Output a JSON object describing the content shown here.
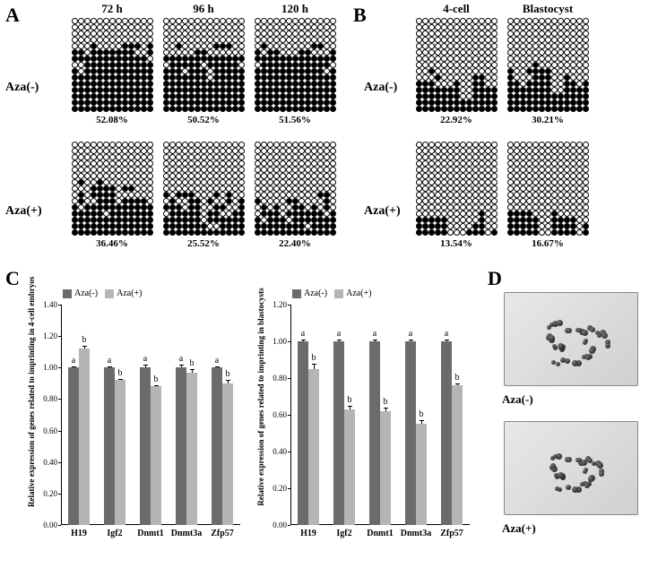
{
  "panelA": {
    "label": "A",
    "label_fontsize": 22,
    "columns": [
      "72 h",
      "96 h",
      "120 h"
    ],
    "rows": [
      "Aza(-)",
      "Aza(+)"
    ],
    "grids": {
      "Aza(-)_72h": {
        "percentage": "52.08%",
        "pattern": [
          "0000000000000",
          "0000000000000",
          "0000000000000",
          "0000000000000",
          "0001000011101",
          "1101111111001",
          "1111111111110",
          "0011111111111",
          "1011111111111",
          "1111111111111",
          "1111111111111",
          "1111111111111",
          "1111111111111",
          "1111111111111",
          "1111111111111"
        ]
      },
      "Aza(-)_96h": {
        "percentage": "50.52%",
        "pattern": [
          "0000000000000",
          "0000000000000",
          "0000000000000",
          "0000000000000",
          "0010000011100",
          "0000011000000",
          "1111111111111",
          "0111110111110",
          "1110111011111",
          "1111111011111",
          "1111111111111",
          "1111111111111",
          "1111111111111",
          "1111111111111",
          "1111111111111"
        ]
      },
      "Aza(-)_120h": {
        "percentage": "51.56%",
        "pattern": [
          "0000000000000",
          "0000000000000",
          "0000000000000",
          "0000000000000",
          "0100000001100",
          "1011000110001",
          "1111111111111",
          "0111111111110",
          "1111111111101",
          "1111111111111",
          "1111111111111",
          "1111111111111",
          "1111111111111",
          "1111111111111",
          "1111111111111"
        ]
      },
      "Aza(+)_72h": {
        "percentage": "36.46%",
        "pattern": [
          "0000000000000",
          "0000000000000",
          "0000000000000",
          "0000000000000",
          "0000000000000",
          "0000000000000",
          "0100100000000",
          "0001111011000",
          "0101111000000",
          "0100111011110",
          "1011111111111",
          "1111101111111",
          "1111111111111",
          "1111111111111",
          "1111111111111"
        ]
      },
      "Aza(+)_96h": {
        "percentage": "25.52%",
        "pattern": [
          "0000000000000",
          "0000000000000",
          "0000000000000",
          "0000000000000",
          "0000000000000",
          "0000000000000",
          "0000000000000",
          "0000000000000",
          "1011100010100",
          "0100110100101",
          "1110110011001",
          "0111110110011",
          "1111110111111",
          "1111111001111",
          "1111111111111"
        ]
      },
      "Aza(+)_120h": {
        "percentage": "22.40%",
        "pattern": [
          "0000000000000",
          "0000000000000",
          "0000000000000",
          "0000000000000",
          "0000000000000",
          "0000000000000",
          "0000000000000",
          "0000000000000",
          "0000000000110",
          "1000011000010",
          "0101001101010",
          "0111011111101",
          "1011101111111",
          "1111111101111",
          "1111111111111"
        ]
      }
    }
  },
  "panelB": {
    "label": "B",
    "columns": [
      "4-cell",
      "Blastocyst"
    ],
    "rows": [
      "Aza(-)",
      "Aza(+)"
    ],
    "grids": {
      "Aza(-)_4cell": {
        "percentage": "22.92%",
        "pattern": [
          "0000000000000",
          "0000000000000",
          "0000000000000",
          "0000000000000",
          "0000000000000",
          "0000000000000",
          "0000000000000",
          "0000000000000",
          "0010000000000",
          "0001000001100",
          "1110001001100",
          "1111111001111",
          "1111111001111",
          "1111111111111",
          "1111111111111"
        ]
      },
      "Aza(-)_Blastocyst": {
        "percentage": "30.21%",
        "pattern": [
          "0000000000000",
          "0000000000000",
          "0000000000000",
          "0000000000000",
          "0000000000000",
          "0000000000000",
          "0000000000000",
          "0000100000000",
          "1001111000000",
          "1000111001000",
          "1101111001101",
          "1111111001111",
          "1111111111111",
          "1111111111111",
          "1111111111111"
        ]
      },
      "Aza(+)_4cell": {
        "percentage": "13.54%",
        "pattern": [
          "0000000000000",
          "0000000000000",
          "0000000000000",
          "0000000000000",
          "0000000000000",
          "0000000000000",
          "0000000000000",
          "0000000000000",
          "0000000000000",
          "0000000000000",
          "0000000000000",
          "0000000000100",
          "1111100000100",
          "1111100001100",
          "1111100011101"
        ]
      },
      "Aza(+)_Blastocyst": {
        "percentage": "16.67%",
        "pattern": [
          "0000000000000",
          "0000000000000",
          "0000000000000",
          "0000000000000",
          "0000000000000",
          "0000000000000",
          "0000000000000",
          "0000000000000",
          "0000000000000",
          "0000000000000",
          "0000000000000",
          "1111000100000",
          "1111100111100",
          "1111100111101",
          "1111100111101"
        ]
      }
    }
  },
  "panelC": {
    "label": "C",
    "chart1": {
      "ylabel": "Relative expression of genes related to imprinting  in 4-cell embryos",
      "ylim": [
        0.0,
        1.4
      ],
      "ytick_step": 0.2,
      "bar_colors": {
        "Aza(-)": "#6b6b6b",
        "Aza(+)": "#b5b5b5"
      },
      "legend": [
        "Aza(-)",
        "Aza(+)"
      ],
      "genes": [
        "H19",
        "Igf2",
        "Dnmt1",
        "Dnmt3a",
        "Zfp57"
      ],
      "values": {
        "Aza(-)": [
          1.0,
          1.0,
          1.0,
          1.0,
          1.0
        ],
        "Aza(+)": [
          1.12,
          0.92,
          0.88,
          0.97,
          0.9
        ]
      },
      "errors": {
        "Aza(-)": [
          0.01,
          0.01,
          0.02,
          0.02,
          0.01
        ],
        "Aza(+)": [
          0.02,
          0.01,
          0.01,
          0.02,
          0.02
        ]
      },
      "significance": {
        "Aza(-)": [
          "a",
          "a",
          "a",
          "a",
          "a"
        ],
        "Aza(+)": [
          "b",
          "b",
          "b",
          "b",
          "b"
        ]
      }
    },
    "chart2": {
      "ylabel": "Relative expression of genes related to imprinting in blastocysts",
      "ylim": [
        0.0,
        1.2
      ],
      "ytick_step": 0.2,
      "bar_colors": {
        "Aza(-)": "#6b6b6b",
        "Aza(+)": "#b5b5b5"
      },
      "legend": [
        "Aza(-)",
        "Aza(+)"
      ],
      "genes": [
        "H19",
        "Igf2",
        "Dnmt1",
        "Dnmt3a",
        "Zfp57"
      ],
      "values": {
        "Aza(-)": [
          1.0,
          1.0,
          1.0,
          1.0,
          1.0
        ],
        "Aza(+)": [
          0.85,
          0.63,
          0.62,
          0.55,
          0.76
        ]
      },
      "errors": {
        "Aza(-)": [
          0.01,
          0.01,
          0.01,
          0.01,
          0.01
        ],
        "Aza(+)": [
          0.03,
          0.02,
          0.02,
          0.02,
          0.01
        ]
      },
      "significance": {
        "Aza(-)": [
          "a",
          "a",
          "a",
          "a",
          "a"
        ],
        "Aza(+)": [
          "b",
          "b",
          "b",
          "b",
          "b"
        ]
      }
    }
  },
  "panelD": {
    "label": "D",
    "images": [
      {
        "label": "Aza(-)",
        "cell_count": 42
      },
      {
        "label": "Aza(+)",
        "cell_count": 38
      }
    ]
  },
  "colors": {
    "dot_filled": "#000000",
    "dot_empty_border": "#000000",
    "background": "#ffffff",
    "bar_aza_neg": "#6b6b6b",
    "bar_aza_pos": "#b5b5b5"
  },
  "fonts": {
    "panel_label_size": 22,
    "row_label_size": 14,
    "col_header_size": 13,
    "percentage_size": 11,
    "axis_size": 11
  }
}
